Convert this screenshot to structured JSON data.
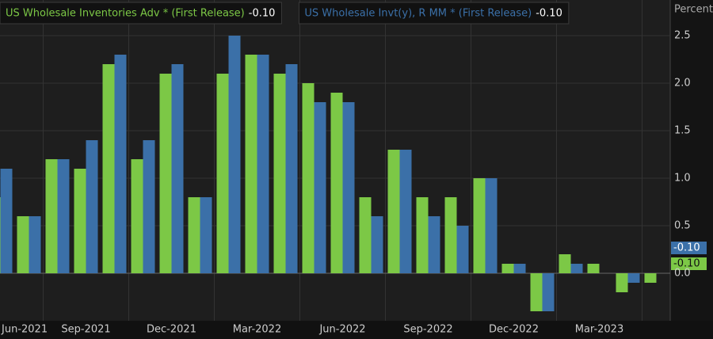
{
  "chart_data": {
    "type": "bar",
    "axis_label": "Percent",
    "categories": [
      "Jun-2021",
      null,
      null,
      "Sep-2021",
      null,
      null,
      "Dec-2021",
      null,
      null,
      "Mar-2022",
      null,
      null,
      "Jun-2022",
      null,
      null,
      "Sep-2022",
      null,
      null,
      "Dec-2022",
      null,
      null,
      "Mar-2023",
      null,
      null
    ],
    "series": [
      {
        "name": "US Wholesale Inventories Adv * (First Release)",
        "last_label": "-0.10",
        "color": "#7cc846",
        "values": [
          0.8,
          0.6,
          1.2,
          1.1,
          2.2,
          1.2,
          2.1,
          0.8,
          2.1,
          2.3,
          2.1,
          2.0,
          1.9,
          0.8,
          1.3,
          0.8,
          0.8,
          1.0,
          0.1,
          -0.4,
          0.2,
          0.1,
          -0.2,
          -0.1
        ]
      },
      {
        "name": "US Wholesale Invt(y), R MM * (First Release)",
        "last_label": "-0.10",
        "color": "#3b70a8",
        "values": [
          1.1,
          0.6,
          1.2,
          1.4,
          2.3,
          1.4,
          2.2,
          0.8,
          2.5,
          2.3,
          2.2,
          1.8,
          1.8,
          0.6,
          1.3,
          0.6,
          0.5,
          1.0,
          0.1,
          -0.4,
          0.1,
          null,
          -0.1,
          null
        ]
      }
    ],
    "ylim": [
      -0.5,
      2.8
    ],
    "yticks": [
      {
        "value": 0,
        "label": "0.0"
      },
      {
        "value": 0.5,
        "label": "0.5"
      },
      {
        "value": 1,
        "label": "1.0"
      },
      {
        "value": 1.5,
        "label": "1.5"
      },
      {
        "value": 2,
        "label": "2.0"
      },
      {
        "value": 2.5,
        "label": "2.5"
      }
    ],
    "grid": true
  }
}
